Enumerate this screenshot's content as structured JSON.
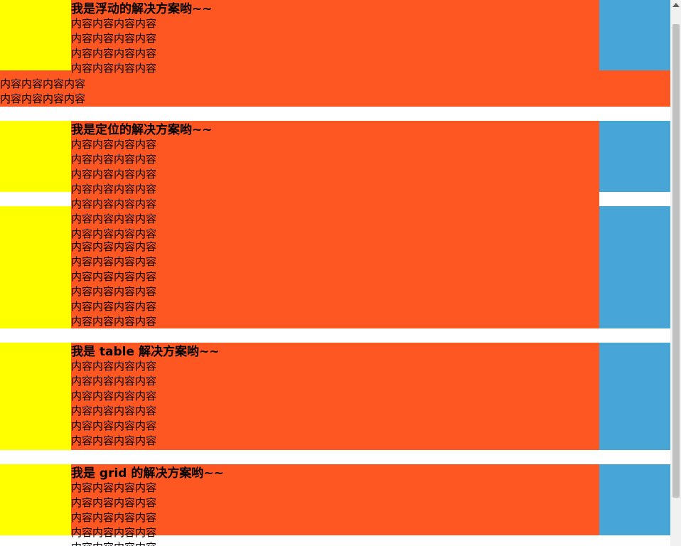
{
  "sections": {
    "float": {
      "title": "我是浮动的解决方案哟~~",
      "lines": [
        "内容内容内容内容",
        "内容内容内容内容",
        "内容内容内容内容",
        "内容内容内容内容"
      ],
      "overflow": [
        "内容内容内容内容",
        "内容内容内容内容"
      ]
    },
    "position": {
      "title": "我是定位的解决方案哟~~",
      "lines": [
        "内容内容内容内容",
        "内容内容内容内容",
        "内容内容内容内容",
        "内容内容内容内容",
        "内容内容内容内容",
        "内容内容内容内容",
        "内容内容内容内容",
        "内容内容内容内容",
        "内容内容内容内容",
        "内容内容内容内容",
        "内容内容内容内容",
        "内容内容内容内容",
        "内容内容内容内容"
      ]
    },
    "table": {
      "title": "我是 table 解决方案哟~~",
      "lines": [
        "内容内容内容内容",
        "内容内容内容内容",
        "内容内容内容内容",
        "内容内容内容内容",
        "内容内容内容内容",
        "内容内容内容内容"
      ]
    },
    "grid": {
      "title": "我是 grid 的解决方案哟~~",
      "lines": [
        "内容内容内容内容",
        "内容内容内容内容",
        "内容内容内容内容",
        "内容内容内容内容",
        "内容内容内容内容"
      ]
    }
  },
  "colors": {
    "left": "#ffff00",
    "center": "#ff5722",
    "right": "#48a6d7"
  }
}
